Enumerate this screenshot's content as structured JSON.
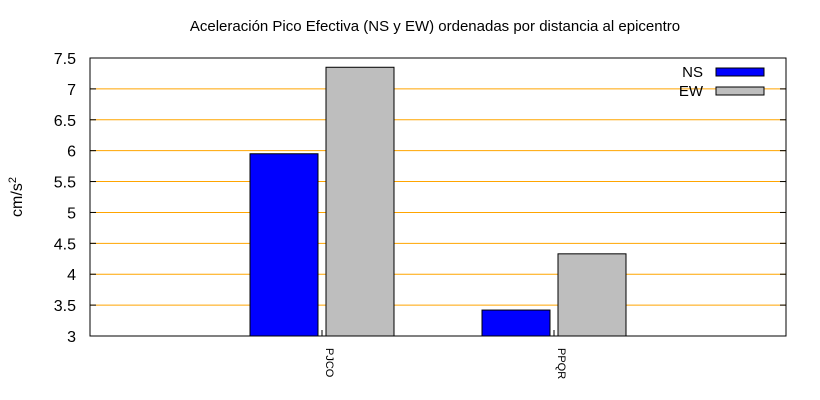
{
  "chart_data": {
    "type": "bar",
    "title": "Aceleración Pico Efectiva (NS y EW) ordenadas por distancia al epicentro",
    "xlabel": "",
    "ylabel": "cm/s",
    "ylabel_superscript": "2",
    "categories": [
      "PJCO",
      "PPQR"
    ],
    "series": [
      {
        "name": "NS",
        "color": "#0000ff",
        "values": [
          5.95,
          3.42
        ]
      },
      {
        "name": "EW",
        "color": "#bebebe",
        "values": [
          7.35,
          4.33
        ]
      }
    ],
    "ylim": [
      3,
      7.5
    ],
    "yticks": [
      "3",
      "3.5",
      "4",
      "4.5",
      "5",
      "5.5",
      "6",
      "6.5",
      "7",
      "7.5"
    ],
    "grid": true,
    "grid_color": "#ffa500",
    "legend_position": "top-right"
  }
}
